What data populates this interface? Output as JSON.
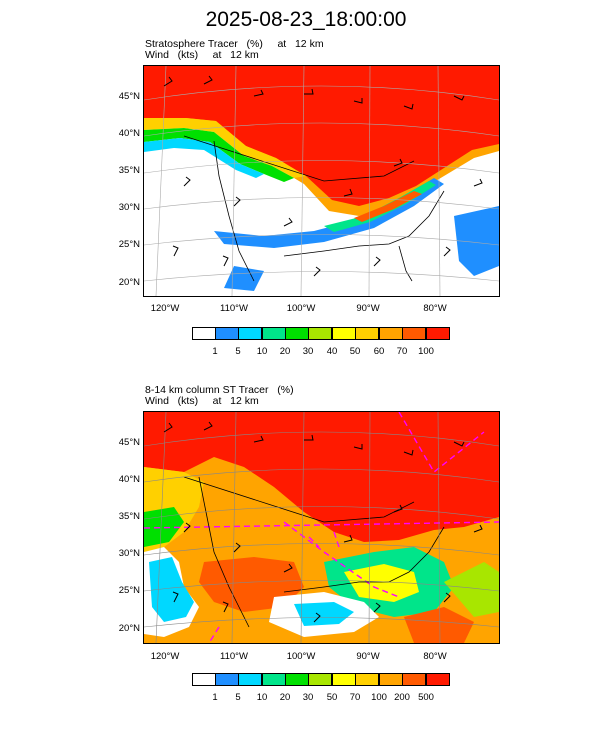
{
  "title": "2025-08-23_18:00:00",
  "panels": [
    {
      "field_line": "Stratosphere Tracer   (%)     at   12 km",
      "wind_line": "Wind   (kts)     at   12 km",
      "lat_labels": [
        "45°N",
        "40°N",
        "35°N",
        "30°N",
        "25°N",
        "20°N"
      ],
      "lon_labels": [
        "120°W",
        "110°W",
        "100°W",
        "90°W",
        "80°W"
      ],
      "colorbar": {
        "colors": [
          "#ffffff",
          "#1f8fff",
          "#00d8ff",
          "#00e58a",
          "#00e000",
          "#a8e600",
          "#ffff00",
          "#ffd000",
          "#ffa400",
          "#ff5a00",
          "#ff1a00"
        ],
        "labels": [
          "1",
          "5",
          "10",
          "20",
          "30",
          "40",
          "50",
          "60",
          "70",
          "100"
        ]
      }
    },
    {
      "field_line": "8-14 km column ST Tracer   (%)",
      "wind_line": "Wind   (kts)     at   12 km",
      "lat_labels": [
        "45°N",
        "40°N",
        "35°N",
        "30°N",
        "25°N",
        "20°N"
      ],
      "lon_labels": [
        "120°W",
        "110°W",
        "100°W",
        "90°W",
        "80°W"
      ],
      "colorbar": {
        "colors": [
          "#ffffff",
          "#1f8fff",
          "#00d8ff",
          "#00e58a",
          "#00e000",
          "#a8e600",
          "#ffff00",
          "#ffd000",
          "#ffa400",
          "#ff5a00",
          "#ff1a00"
        ],
        "labels": [
          "1",
          "5",
          "10",
          "20",
          "30",
          "50",
          "70",
          "100",
          "200",
          "500"
        ]
      }
    }
  ]
}
